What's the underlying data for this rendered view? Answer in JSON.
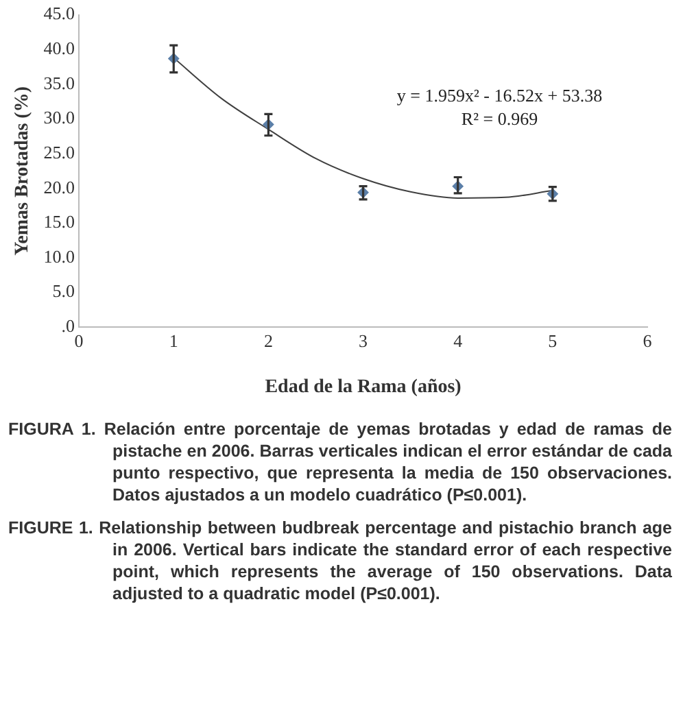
{
  "chart_data": {
    "type": "scatter",
    "xlabel": "Edad de la Rama (años)",
    "ylabel": "Yemas Brotadas (%)",
    "x": [
      1,
      2,
      3,
      4,
      5
    ],
    "series": [
      {
        "color": "#5b7fa8",
        "values": [
          38.7,
          29.2,
          19.4,
          20.3,
          19.2
        ],
        "errors": [
          [
            36.7,
            40.6
          ],
          [
            27.6,
            30.7
          ],
          [
            18.4,
            20.3
          ],
          [
            19.3,
            21.6
          ],
          [
            18.2,
            20.2
          ]
        ],
        "marker": "diamond"
      },
      {
        "type": "line",
        "color": "#404040",
        "x": [
          1,
          1.5,
          2,
          2.5,
          3,
          3.5,
          4,
          4.5,
          5
        ],
        "values": [
          38.8,
          33.0,
          28.5,
          24.3,
          21.4,
          19.5,
          18.6,
          18.7,
          19.7
        ],
        "marker": "none"
      }
    ],
    "xlim": [
      0,
      6
    ],
    "xticks": [
      0,
      1,
      2,
      3,
      4,
      5,
      6
    ],
    "ylim": [
      0,
      45
    ],
    "yticks": [
      {
        "value": 0,
        "label": ".0"
      },
      {
        "value": 5,
        "label": "5.0"
      },
      {
        "value": 10,
        "label": "10.0"
      },
      {
        "value": 15,
        "label": "15.0"
      },
      {
        "value": 20,
        "label": "20.0"
      },
      {
        "value": 25,
        "label": "25.0"
      },
      {
        "value": 30,
        "label": "30.0"
      },
      {
        "value": 35,
        "label": "35.0"
      },
      {
        "value": 40,
        "label": "40.0"
      },
      {
        "value": 45,
        "label": "45.0"
      }
    ],
    "grid": false,
    "legend": false,
    "annotations": [
      "y = 1.959x² - 16.52x + 53.38",
      "R² = 0.969",
      "FIGURA 1. Relación entre porcentaje de yemas brotadas y edad de ramas de pistache en 2006. Barras verticales indican el error estándar de cada punto respectivo, que representa la media de 150 observaciones. Datos ajustados a un modelo cuadrático (P≤0.001).",
      "FIGURE 1. Relationship between budbreak percentage and pistachio branch age in 2006. Vertical bars indicate the standard error of each respective point, which represents the average of 150 observations. Data adjusted to a quadratic model (P≤0.001)."
    ]
  }
}
